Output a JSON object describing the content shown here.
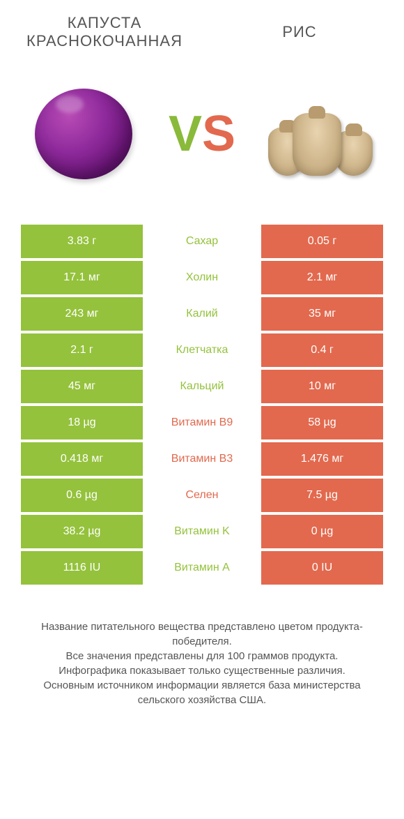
{
  "colors": {
    "green": "#94c23c",
    "orange": "#e2694e",
    "text": "#555555"
  },
  "header": {
    "left_title": "КАПУСТА КРАСНОКОЧАННАЯ",
    "right_title": "РИС",
    "vs_v": "V",
    "vs_s": "S"
  },
  "table": {
    "rows": [
      {
        "left": "3.83 г",
        "label": "Сахар",
        "right": "0.05 г",
        "winner": "left"
      },
      {
        "left": "17.1 мг",
        "label": "Холин",
        "right": "2.1 мг",
        "winner": "left"
      },
      {
        "left": "243 мг",
        "label": "Калий",
        "right": "35 мг",
        "winner": "left"
      },
      {
        "left": "2.1 г",
        "label": "Клетчатка",
        "right": "0.4 г",
        "winner": "left"
      },
      {
        "left": "45 мг",
        "label": "Кальций",
        "right": "10 мг",
        "winner": "left"
      },
      {
        "left": "18 µg",
        "label": "Витамин B9",
        "right": "58 µg",
        "winner": "right"
      },
      {
        "left": "0.418 мг",
        "label": "Витамин B3",
        "right": "1.476 мг",
        "winner": "right"
      },
      {
        "left": "0.6 µg",
        "label": "Селен",
        "right": "7.5 µg",
        "winner": "right"
      },
      {
        "left": "38.2 µg",
        "label": "Витамин K",
        "right": "0 µg",
        "winner": "left"
      },
      {
        "left": "1116 IU",
        "label": "Витамин A",
        "right": "0 IU",
        "winner": "left"
      }
    ]
  },
  "footer": {
    "line1": "Название питательного вещества представлено цветом продукта-победителя.",
    "line2": "Все значения представлены для 100 граммов продукта.",
    "line3": "Инфографика показывает только существенные различия.",
    "line4": "Основным источником информации является база министерства сельского хозяйства США."
  }
}
